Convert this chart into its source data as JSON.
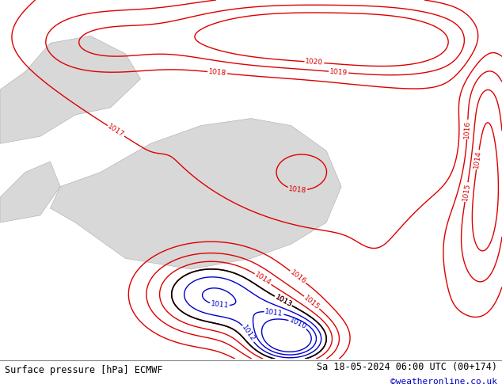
{
  "title_left": "Surface pressure [hPa] ECMWF",
  "title_right": "Sa 18-05-2024 06:00 UTC (00+174)",
  "credit": "©weatheronline.co.uk",
  "bg_color": "#c8e8b8",
  "sea_color": "#d8d8d8",
  "contour_color_red": "#dd0000",
  "contour_color_black": "#000000",
  "contour_color_blue": "#0000cc",
  "footer_bg": "#ffffff",
  "footer_text_color": "#000000",
  "credit_color": "#0000cc",
  "fig_width": 6.34,
  "fig_height": 4.9,
  "dpi": 100,
  "levels_red": [
    1013,
    1014,
    1015,
    1016,
    1017,
    1018,
    1019,
    1020
  ],
  "levels_black": [
    1013
  ],
  "levels_blue": [
    1010,
    1011,
    1012
  ]
}
